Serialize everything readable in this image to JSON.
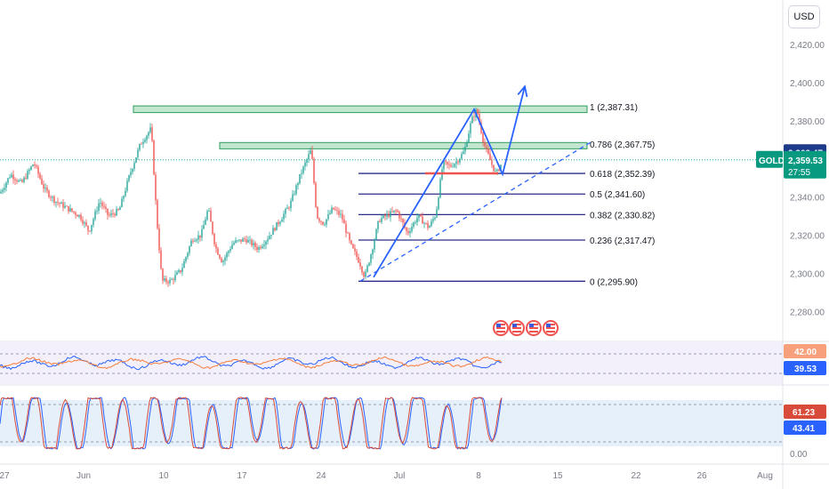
{
  "currency_button": "USD",
  "symbol": "GOLD",
  "current_price": "2,359.53",
  "countdown": "27:55",
  "price_marker": "2,363.47",
  "colors": {
    "up": "#26a69a",
    "down": "#ef5350",
    "fib_line": "#2a2e87",
    "zone_fill": "#8fd1a8",
    "zone_border": "#2e9e5e",
    "arrow": "#2962ff",
    "osc_blue": "#2962ff",
    "osc_orange": "#f57c3b",
    "osc_red": "#d84a3a",
    "badge_teal": "#089981",
    "badge_blue": "#2962ff",
    "badge_orange": "#f7a07b"
  },
  "chart_data": {
    "type": "candlestick",
    "main": {
      "y_ticks": [
        "2,420.00",
        "2,400.00",
        "2,380.00",
        "2,360.00",
        "2,340.00",
        "2,320.00",
        "2,300.00",
        "2,280.00"
      ],
      "y_tick_values": [
        2420,
        2400,
        2380,
        2360,
        2340,
        2320,
        2300,
        2280
      ],
      "ylim": [
        2268,
        2430
      ],
      "fib_levels": [
        {
          "label": "1 (2,387.31)",
          "value": 2387.31
        },
        {
          "label": "0.786 (2,367.75)",
          "value": 2367.75
        },
        {
          "label": "0.618 (2,352.39)",
          "value": 2352.39
        },
        {
          "label": "0.5 (2,341.60)",
          "value": 2341.6
        },
        {
          "label": "0.382 (2,330.82)",
          "value": 2330.82
        },
        {
          "label": "0.236 (2,317.47)",
          "value": 2317.47
        },
        {
          "label": "0 (2,295.90)",
          "value": 2295.9
        }
      ],
      "zones": [
        {
          "y_top": 2387.8,
          "y_bottom": 2384.3
        },
        {
          "y_top": 2368.6,
          "y_bottom": 2365.3
        }
      ],
      "close_path": [
        [
          0,
          2342
        ],
        [
          12,
          2352
        ],
        [
          24,
          2347
        ],
        [
          38,
          2358
        ],
        [
          50,
          2344
        ],
        [
          62,
          2338
        ],
        [
          76,
          2334
        ],
        [
          90,
          2330
        ],
        [
          100,
          2322
        ],
        [
          112,
          2338
        ],
        [
          122,
          2330
        ],
        [
          134,
          2333
        ],
        [
          146,
          2352
        ],
        [
          158,
          2368
        ],
        [
          170,
          2376
        ],
        [
          176,
          2330
        ],
        [
          182,
          2296
        ],
        [
          192,
          2296
        ],
        [
          204,
          2302
        ],
        [
          216,
          2318
        ],
        [
          226,
          2320
        ],
        [
          234,
          2334
        ],
        [
          242,
          2314
        ],
        [
          250,
          2306
        ],
        [
          262,
          2316
        ],
        [
          276,
          2318
        ],
        [
          290,
          2313
        ],
        [
          300,
          2318
        ],
        [
          312,
          2326
        ],
        [
          326,
          2336
        ],
        [
          338,
          2352
        ],
        [
          350,
          2365
        ],
        [
          356,
          2330
        ],
        [
          364,
          2326
        ],
        [
          374,
          2334
        ],
        [
          384,
          2330
        ],
        [
          394,
          2315
        ],
        [
          404,
          2306
        ],
        [
          410,
          2298
        ],
        [
          418,
          2312
        ],
        [
          426,
          2328
        ],
        [
          434,
          2330
        ],
        [
          446,
          2333
        ],
        [
          458,
          2321
        ],
        [
          470,
          2330
        ],
        [
          482,
          2324
        ],
        [
          490,
          2331
        ],
        [
          498,
          2358
        ],
        [
          506,
          2356
        ],
        [
          514,
          2359
        ],
        [
          522,
          2364
        ],
        [
          530,
          2380
        ],
        [
          536,
          2386
        ],
        [
          544,
          2368
        ],
        [
          552,
          2358
        ],
        [
          558,
          2352
        ],
        [
          564,
          2358
        ]
      ],
      "trendline": {
        "from": [
          405,
          2295.9
        ],
        "to": [
          665,
          2369
        ]
      },
      "projection": [
        [
          420,
          2298
        ],
        [
          533,
          2386
        ],
        [
          565,
          2352
        ],
        [
          590,
          2398
        ]
      ],
      "red_line": {
        "from": [
          478,
          2352.4
        ],
        "to": [
          560,
          2352.4
        ]
      },
      "current_price_value": 2359.53,
      "marker_value": 2363.47,
      "event_icons_x": [
        563,
        581,
        600,
        619
      ]
    },
    "oscillator1": {
      "y_ticks": [
        "42.00",
        "39.53"
      ],
      "series": [
        "blue",
        "orange"
      ]
    },
    "oscillator2": {
      "y_ticks": [
        "61.23",
        "43.41",
        "0.00"
      ]
    },
    "x_ticks": [
      {
        "label": "27",
        "x": 5
      },
      {
        "label": "Jun",
        "x": 94
      },
      {
        "label": "10",
        "x": 184
      },
      {
        "label": "17",
        "x": 272
      },
      {
        "label": "24",
        "x": 361
      },
      {
        "label": "Jul",
        "x": 449
      },
      {
        "label": "8",
        "x": 538
      },
      {
        "label": "15",
        "x": 627
      },
      {
        "label": "22",
        "x": 715
      },
      {
        "label": "26",
        "x": 789
      },
      {
        "label": "Aug",
        "x": 860
      }
    ]
  }
}
